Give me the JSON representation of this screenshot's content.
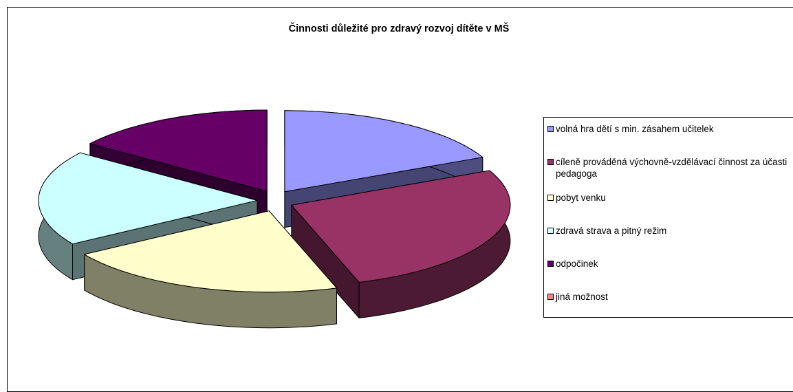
{
  "chart_data": {
    "type": "pie",
    "title": "Činnosti důležité pro zdravý rozvoj dítěte v MŠ",
    "categories": [
      "volná hra dětí s min. zásahem učitelek",
      "cíleně prováděná výchovně-vzdělávací činnost za účasti pedagoga",
      "pobyt venku",
      "zdravá strava a pitný režim",
      "odpočinek",
      "jiná možnost"
    ],
    "values": [
      18,
      27,
      21,
      19,
      15,
      0
    ],
    "colors": [
      "#9999ff",
      "#993366",
      "#ffffcc",
      "#ccffff",
      "#660066",
      "#ff8080"
    ],
    "legend": "right"
  }
}
